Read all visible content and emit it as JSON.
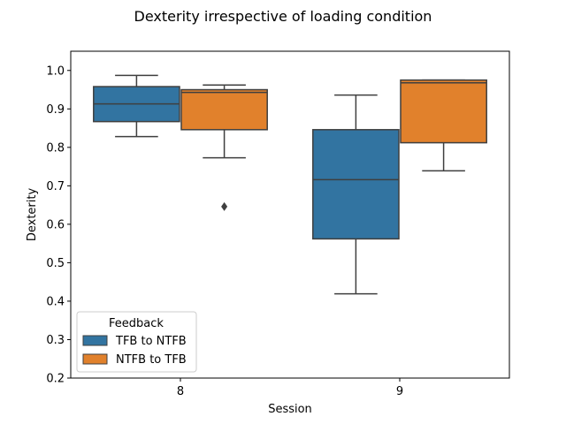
{
  "chart_data": {
    "type": "box",
    "title": "Dexterity irrespective of loading condition",
    "xlabel": "Session",
    "ylabel": "Dexterity",
    "ylim": [
      0.2,
      1.05
    ],
    "yticks": [
      0.2,
      0.3,
      0.4,
      0.5,
      0.6,
      0.7,
      0.8,
      0.9,
      1.0
    ],
    "ytick_labels": [
      "0.2",
      "0.3",
      "0.4",
      "0.5",
      "0.6",
      "0.7",
      "0.8",
      "0.9",
      "1.0"
    ],
    "categories": [
      "8",
      "9"
    ],
    "grid": false,
    "legend": {
      "title": "Feedback",
      "position": "lower-left"
    },
    "series": [
      {
        "name": "TFB to NTFB",
        "color": "#3274a1",
        "boxes": [
          {
            "category": "8",
            "whislo": 0.828,
            "q1": 0.867,
            "med": 0.913,
            "q3": 0.958,
            "whishi": 0.987,
            "fliers": []
          },
          {
            "category": "9",
            "whislo": 0.419,
            "q1": 0.562,
            "med": 0.716,
            "q3": 0.846,
            "whishi": 0.936,
            "fliers": []
          }
        ]
      },
      {
        "name": "NTFB to TFB",
        "color": "#e1812c",
        "boxes": [
          {
            "category": "8",
            "whislo": 0.773,
            "q1": 0.846,
            "med": 0.943,
            "q3": 0.95,
            "whishi": 0.962,
            "fliers": [
              0.646
            ]
          },
          {
            "category": "9",
            "whislo": 0.739,
            "q1": 0.812,
            "med": 0.968,
            "q3": 0.975,
            "whishi": 0.975,
            "fliers": []
          }
        ]
      }
    ]
  }
}
